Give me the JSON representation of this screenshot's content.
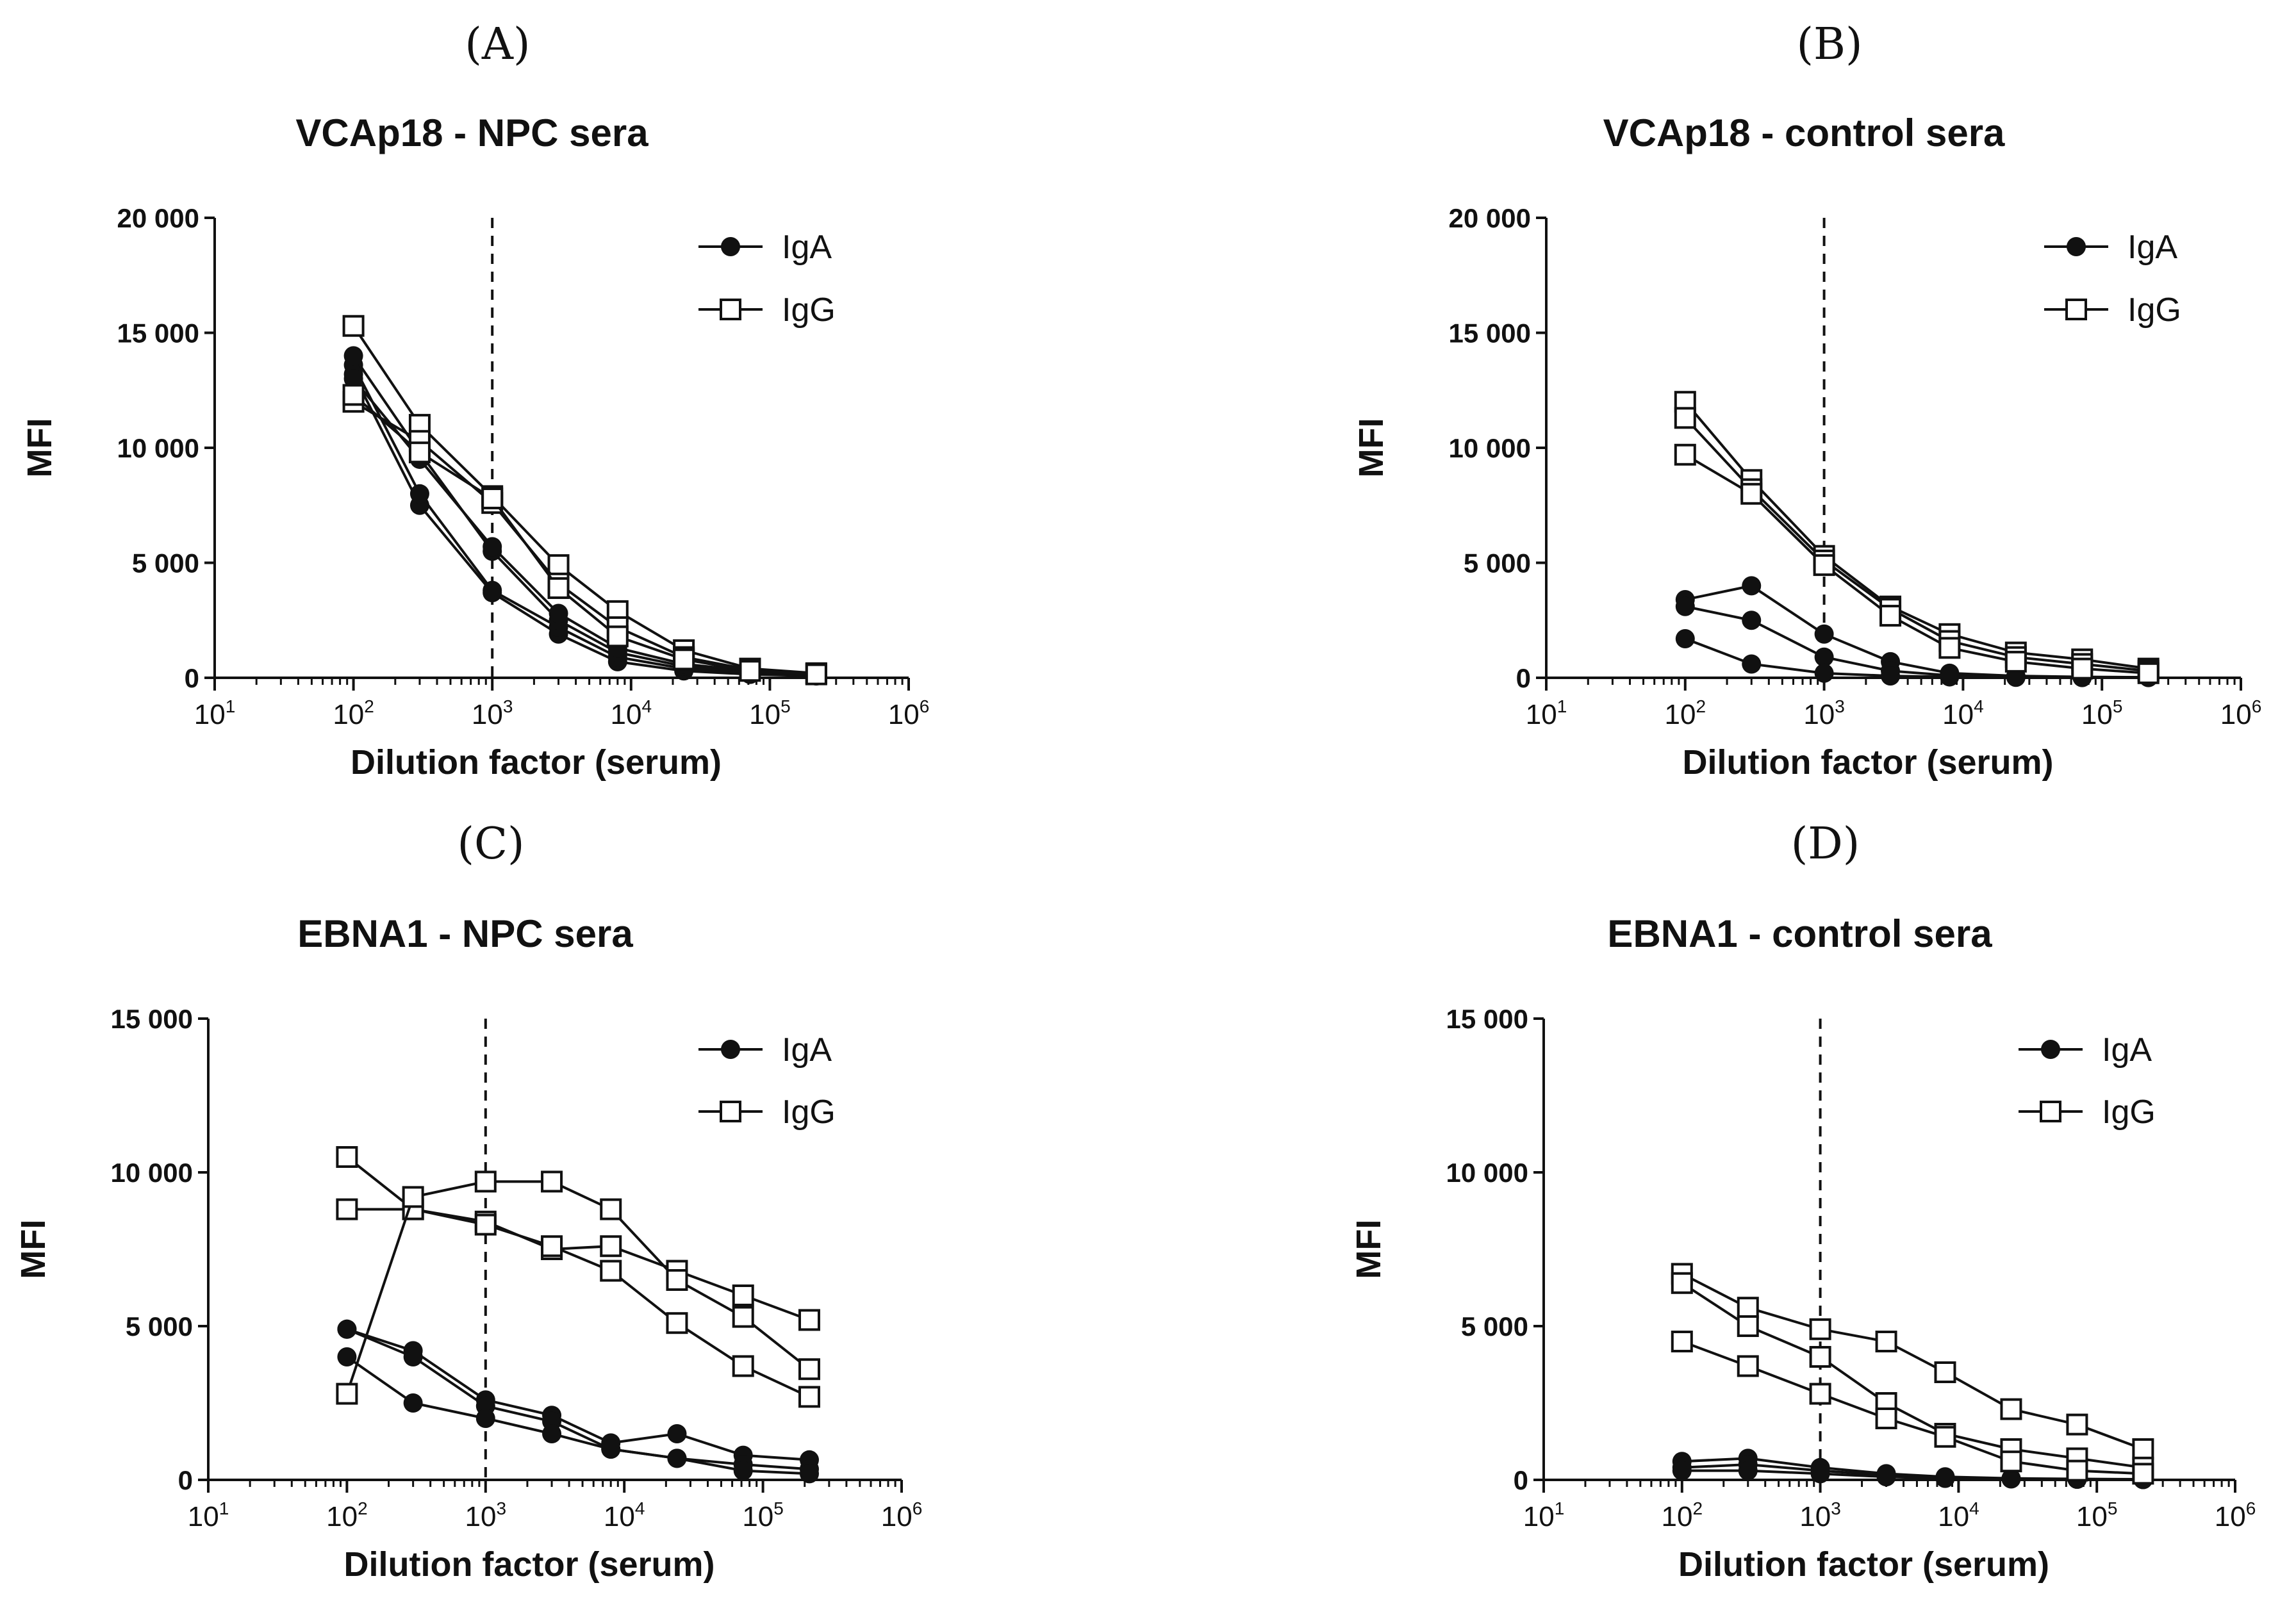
{
  "chart_data": [
    {
      "panel": "(A)",
      "type": "line",
      "title": "VCAp18 - NPC sera",
      "xlabel": "Dilution factor (serum)",
      "ylabel": "MFI",
      "xscale": "log",
      "xlim_exp": [
        1,
        6
      ],
      "x_tick_labels": [
        "10",
        "10",
        "10",
        "10",
        "10",
        "10"
      ],
      "x_tick_exponents": [
        "1",
        "2",
        "3",
        "4",
        "5",
        "6"
      ],
      "ylim": [
        0,
        20000
      ],
      "y_tick_values": [
        0,
        5000,
        10000,
        15000,
        20000
      ],
      "y_tick_labels": [
        "0",
        "5 000",
        "10 000",
        "15 000",
        "20 000"
      ],
      "reference_line_x": 1000,
      "legend": [
        "IgA",
        "IgG"
      ],
      "legend_position": "top-right",
      "x": [
        100,
        300,
        1000,
        3000,
        8000,
        24000,
        72000,
        216000
      ],
      "series": [
        {
          "name": "IgA",
          "marker": "filled-circle",
          "values": [
            13200,
            7500,
            3700,
            1900,
            700,
            300,
            150,
            80
          ]
        },
        {
          "name": "IgA",
          "marker": "filled-circle",
          "values": [
            13600,
            8000,
            3800,
            2200,
            900,
            400,
            200,
            100
          ]
        },
        {
          "name": "IgA",
          "marker": "filled-circle",
          "values": [
            14000,
            9800,
            5500,
            2500,
            1100,
            500,
            250,
            120
          ]
        },
        {
          "name": "IgA",
          "marker": "filled-circle",
          "values": [
            13000,
            9500,
            5700,
            2800,
            1300,
            600,
            300,
            150
          ]
        },
        {
          "name": "IgG",
          "marker": "open-square",
          "values": [
            15300,
            11000,
            7900,
            4900,
            2900,
            1200,
            400,
            200
          ]
        },
        {
          "name": "IgG",
          "marker": "open-square",
          "values": [
            12000,
            10300,
            7600,
            4100,
            2200,
            900,
            350,
            180
          ]
        },
        {
          "name": "IgG",
          "marker": "open-square",
          "values": [
            12300,
            9800,
            7800,
            3900,
            1800,
            800,
            300,
            150
          ]
        }
      ]
    },
    {
      "panel": "(B)",
      "type": "line",
      "title": "VCAp18 - control sera",
      "xlabel": "Dilution factor (serum)",
      "ylabel": "MFI",
      "xscale": "log",
      "xlim_exp": [
        1,
        6
      ],
      "x_tick_labels": [
        "10",
        "10",
        "10",
        "10",
        "10",
        "10"
      ],
      "x_tick_exponents": [
        "1",
        "2",
        "3",
        "4",
        "5",
        "6"
      ],
      "ylim": [
        0,
        20000
      ],
      "y_tick_values": [
        0,
        5000,
        10000,
        15000,
        20000
      ],
      "y_tick_labels": [
        "0",
        "5 000",
        "10 000",
        "15 000",
        "20 000"
      ],
      "reference_line_x": 1000,
      "legend": [
        "IgA",
        "IgG"
      ],
      "legend_position": "top-right",
      "x": [
        100,
        300,
        1000,
        3000,
        8000,
        24000,
        72000,
        216000
      ],
      "series": [
        {
          "name": "IgA",
          "marker": "filled-circle",
          "values": [
            3400,
            4000,
            1900,
            700,
            200,
            80,
            40,
            20
          ]
        },
        {
          "name": "IgA",
          "marker": "filled-circle",
          "values": [
            3100,
            2500,
            900,
            300,
            100,
            50,
            30,
            20
          ]
        },
        {
          "name": "IgA",
          "marker": "filled-circle",
          "values": [
            1700,
            600,
            200,
            80,
            40,
            20,
            10,
            10
          ]
        },
        {
          "name": "IgG",
          "marker": "open-square",
          "values": [
            12000,
            8600,
            5300,
            3100,
            1900,
            1100,
            800,
            400
          ]
        },
        {
          "name": "IgG",
          "marker": "open-square",
          "values": [
            11300,
            8200,
            5100,
            3000,
            1600,
            900,
            600,
            300
          ]
        },
        {
          "name": "IgG",
          "marker": "open-square",
          "values": [
            9700,
            8000,
            4900,
            2700,
            1300,
            700,
            400,
            200
          ]
        }
      ]
    },
    {
      "panel": "(C)",
      "type": "line",
      "title": "EBNA1 - NPC sera",
      "xlabel": "Dilution factor (serum)",
      "ylabel": "MFI",
      "xscale": "log",
      "xlim_exp": [
        1,
        6
      ],
      "x_tick_labels": [
        "10",
        "10",
        "10",
        "10",
        "10",
        "10"
      ],
      "x_tick_exponents": [
        "1",
        "2",
        "3",
        "4",
        "5",
        "6"
      ],
      "ylim": [
        0,
        15000
      ],
      "y_tick_values": [
        0,
        5000,
        10000,
        15000
      ],
      "y_tick_labels": [
        "0",
        "5 000",
        "10 000",
        "15 000"
      ],
      "reference_line_x": 1000,
      "legend": [
        "IgA",
        "IgG"
      ],
      "legend_position": "top-right",
      "x": [
        100,
        300,
        1000,
        3000,
        8000,
        24000,
        72000,
        216000
      ],
      "series": [
        {
          "name": "IgA",
          "marker": "filled-circle",
          "values": [
            4900,
            4200,
            2600,
            2100,
            1200,
            1500,
            800,
            650
          ]
        },
        {
          "name": "IgA",
          "marker": "filled-circle",
          "values": [
            4900,
            4000,
            2400,
            1900,
            1000,
            700,
            500,
            350
          ]
        },
        {
          "name": "IgA",
          "marker": "filled-circle",
          "values": [
            4000,
            2500,
            2000,
            1500,
            1000,
            700,
            300,
            200
          ]
        },
        {
          "name": "IgG",
          "marker": "open-square",
          "values": [
            10500,
            8800,
            8400,
            7500,
            7600,
            6800,
            6000,
            5200
          ]
        },
        {
          "name": "IgG",
          "marker": "open-square",
          "values": [
            8800,
            8800,
            8300,
            7600,
            6800,
            5100,
            3700,
            2700
          ]
        },
        {
          "name": "IgG",
          "marker": "open-square",
          "values": [
            2800,
            9200,
            9700,
            9700,
            8800,
            6500,
            5300,
            3600
          ]
        }
      ]
    },
    {
      "panel": "(D)",
      "type": "line",
      "title": "EBNA1 - control sera",
      "xlabel": "Dilution factor (serum)",
      "ylabel": "MFI",
      "xscale": "log",
      "xlim_exp": [
        1,
        6
      ],
      "x_tick_labels": [
        "10",
        "10",
        "10",
        "10",
        "10",
        "10"
      ],
      "x_tick_exponents": [
        "1",
        "2",
        "3",
        "4",
        "5",
        "6"
      ],
      "ylim": [
        0,
        15000
      ],
      "y_tick_values": [
        0,
        5000,
        10000,
        15000
      ],
      "y_tick_labels": [
        "0",
        "5 000",
        "10 000",
        "15 000"
      ],
      "reference_line_x": 1000,
      "legend": [
        "IgA",
        "IgG"
      ],
      "legend_position": "top-right",
      "x": [
        100,
        300,
        1000,
        3000,
        8000,
        24000,
        72000,
        216000
      ],
      "series": [
        {
          "name": "IgA",
          "marker": "filled-circle",
          "values": [
            600,
            700,
            400,
            200,
            100,
            50,
            30,
            20
          ]
        },
        {
          "name": "IgA",
          "marker": "filled-circle",
          "values": [
            400,
            500,
            300,
            150,
            80,
            40,
            20,
            10
          ]
        },
        {
          "name": "IgA",
          "marker": "filled-circle",
          "values": [
            300,
            300,
            200,
            100,
            50,
            30,
            20,
            10
          ]
        },
        {
          "name": "IgG",
          "marker": "open-square",
          "values": [
            6700,
            5600,
            4900,
            4500,
            3500,
            2300,
            1800,
            1000
          ]
        },
        {
          "name": "IgG",
          "marker": "open-square",
          "values": [
            6400,
            5000,
            4000,
            2500,
            1500,
            1000,
            700,
            400
          ]
        },
        {
          "name": "IgG",
          "marker": "open-square",
          "values": [
            4500,
            3700,
            2800,
            2000,
            1400,
            600,
            300,
            200
          ]
        }
      ]
    }
  ]
}
